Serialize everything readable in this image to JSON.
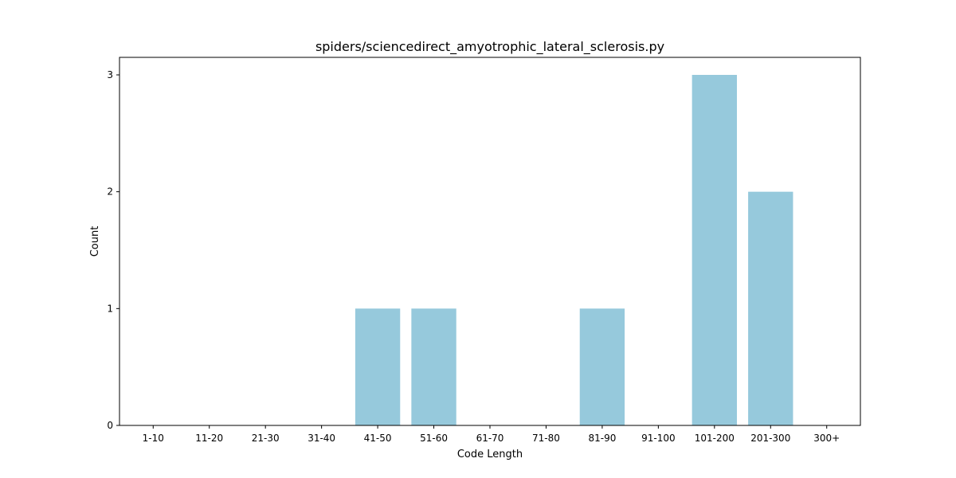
{
  "chart_data": {
    "type": "bar",
    "title": "spiders/sciencedirect_amyotrophic_lateral_sclerosis.py",
    "xlabel": "Code Length",
    "ylabel": "Count",
    "categories": [
      "1-10",
      "11-20",
      "21-30",
      "31-40",
      "41-50",
      "51-60",
      "61-70",
      "71-80",
      "81-90",
      "91-100",
      "101-200",
      "201-300",
      "300+"
    ],
    "values": [
      0,
      0,
      0,
      0,
      1,
      1,
      0,
      0,
      1,
      0,
      3,
      2,
      0
    ],
    "ylim": [
      0,
      3.15
    ],
    "yticks": [
      0,
      1,
      2,
      3
    ],
    "bar_color": "#96c9dc",
    "grid": false,
    "legend": "none"
  }
}
